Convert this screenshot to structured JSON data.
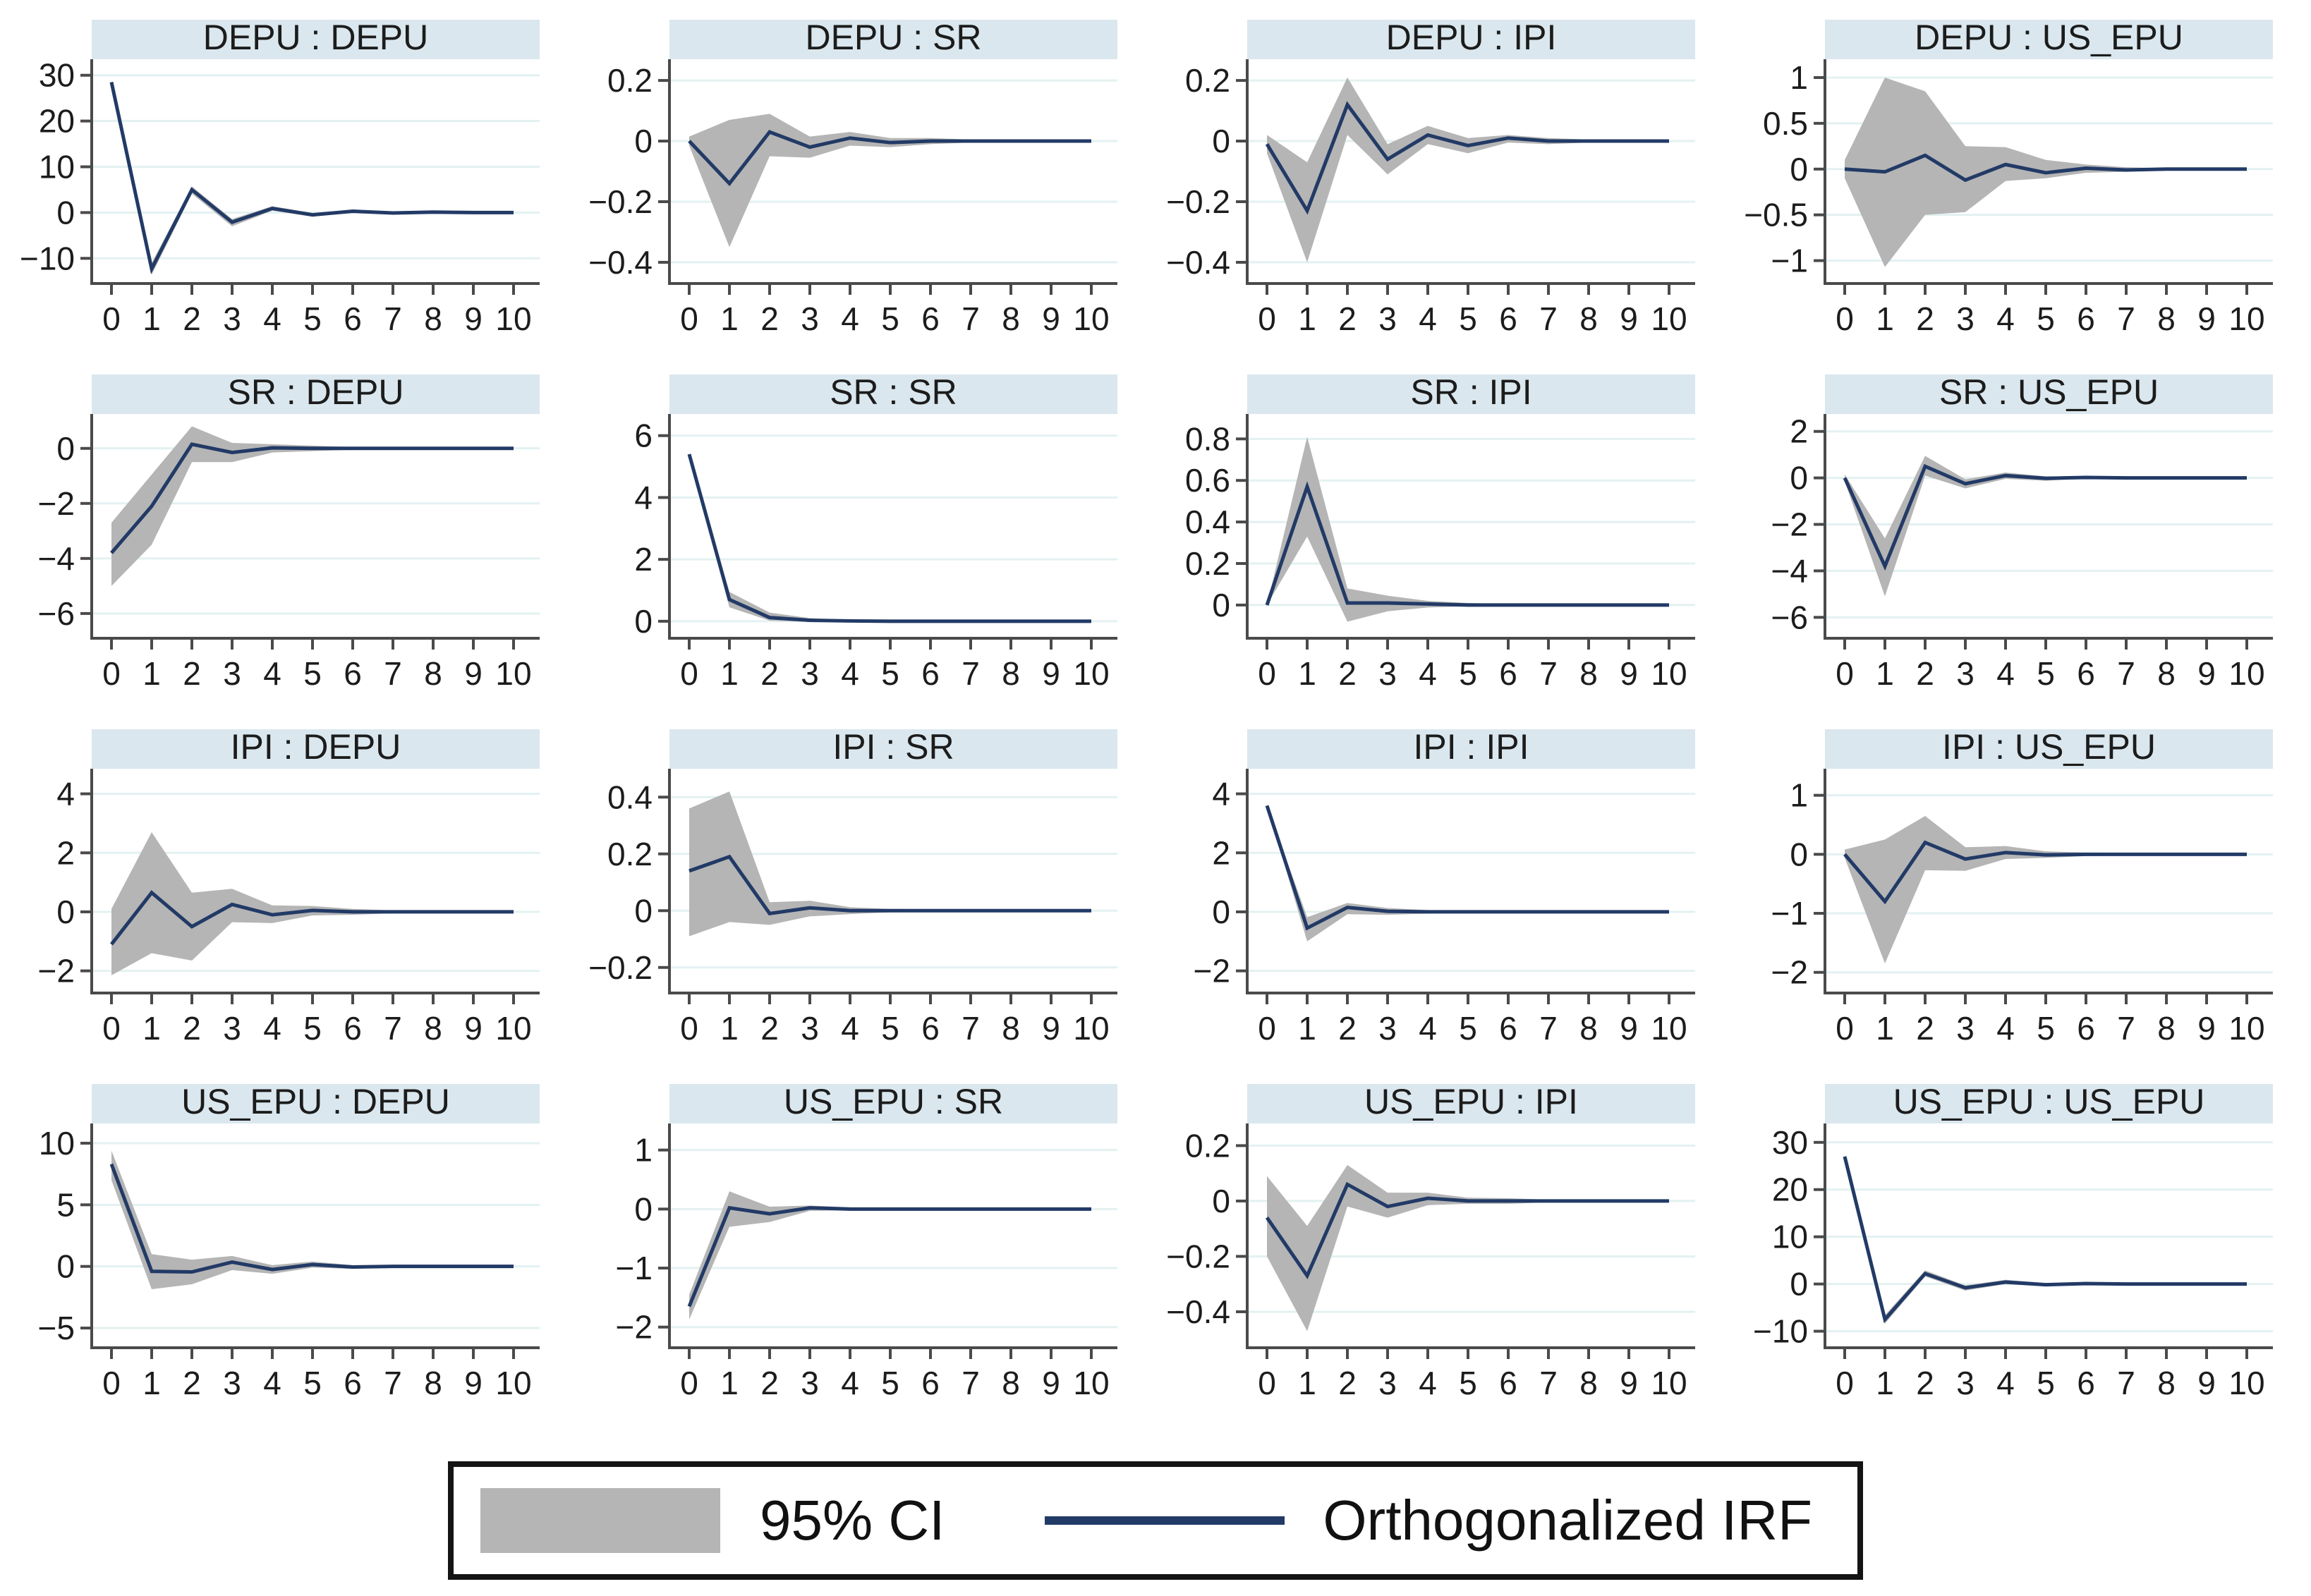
{
  "legend": {
    "ci_label": "95% CI",
    "irf_label": "Orthogonalized IRF"
  },
  "colors": {
    "header_bg": "#dae7ee",
    "grid_line": "#e3f1f1",
    "axis": "#4a4a4a",
    "tick_label": "#1c1c1c",
    "irf_line": "#223a66",
    "ci_fill": "#b5b5b5",
    "legend_border": "#141414"
  },
  "chart_data": [
    {
      "type": "line",
      "title": "DEPU : DEPU",
      "x": [
        0,
        1,
        2,
        3,
        4,
        5,
        6,
        7,
        8,
        9,
        10
      ],
      "xticks": [
        0,
        1,
        2,
        3,
        4,
        5,
        6,
        7,
        8,
        9,
        10
      ],
      "yticks": [
        -10,
        0,
        10,
        20,
        30
      ],
      "ylim": [
        -15.5,
        33.5
      ],
      "irf": [
        28.5,
        -12.3,
        5.0,
        -2.1,
        0.9,
        -0.5,
        0.3,
        -0.1,
        0.1,
        0,
        0
      ],
      "ci_lower": [
        28.5,
        -13.6,
        4.1,
        -3.0,
        0.4,
        -0.9,
        0.0,
        -0.3,
        -0.1,
        -0.1,
        -0.1
      ],
      "ci_upper": [
        28.5,
        -11.0,
        5.7,
        -1.4,
        1.4,
        -0.1,
        0.6,
        0.1,
        0.3,
        0.1,
        0.1
      ]
    },
    {
      "type": "line",
      "title": "DEPU : SR",
      "x": [
        0,
        1,
        2,
        3,
        4,
        5,
        6,
        7,
        8,
        9,
        10
      ],
      "xticks": [
        0,
        1,
        2,
        3,
        4,
        5,
        6,
        7,
        8,
        9,
        10
      ],
      "yticks": [
        -0.4,
        -0.2,
        0,
        0.2
      ],
      "ylim": [
        -0.47,
        0.27
      ],
      "irf": [
        0,
        -0.14,
        0.03,
        -0.02,
        0.01,
        -0.005,
        0,
        0,
        0,
        0,
        0
      ],
      "ci_lower": [
        -0.015,
        -0.35,
        -0.05,
        -0.055,
        -0.015,
        -0.02,
        -0.01,
        -0.005,
        -0.005,
        -0.005,
        -0.005
      ],
      "ci_upper": [
        0.015,
        0.07,
        0.09,
        0.015,
        0.03,
        0.01,
        0.01,
        0.005,
        0.005,
        0.005,
        0.005
      ]
    },
    {
      "type": "line",
      "title": "DEPU : IPI",
      "x": [
        0,
        1,
        2,
        3,
        4,
        5,
        6,
        7,
        8,
        9,
        10
      ],
      "xticks": [
        0,
        1,
        2,
        3,
        4,
        5,
        6,
        7,
        8,
        9,
        10
      ],
      "yticks": [
        -0.4,
        -0.2,
        0,
        0.2
      ],
      "ylim": [
        -0.47,
        0.27
      ],
      "irf": [
        -0.01,
        -0.23,
        0.12,
        -0.06,
        0.02,
        -0.015,
        0.01,
        0,
        0,
        0,
        0
      ],
      "ci_lower": [
        -0.04,
        -0.4,
        0.02,
        -0.11,
        -0.01,
        -0.04,
        -0.005,
        -0.01,
        -0.005,
        -0.005,
        -0.005
      ],
      "ci_upper": [
        0.02,
        -0.07,
        0.21,
        -0.01,
        0.05,
        0.01,
        0.02,
        0.01,
        0.005,
        0.005,
        0.005
      ]
    },
    {
      "type": "line",
      "title": "DEPU : US_EPU",
      "x": [
        0,
        1,
        2,
        3,
        4,
        5,
        6,
        7,
        8,
        9,
        10
      ],
      "xticks": [
        0,
        1,
        2,
        3,
        4,
        5,
        6,
        7,
        8,
        9,
        10
      ],
      "yticks": [
        -1,
        -0.5,
        0,
        0.5,
        1
      ],
      "ylim": [
        -1.25,
        1.2
      ],
      "irf": [
        0,
        -0.03,
        0.15,
        -0.12,
        0.05,
        -0.04,
        0.01,
        -0.01,
        0,
        0,
        0
      ],
      "ci_lower": [
        -0.1,
        -1.07,
        -0.5,
        -0.47,
        -0.13,
        -0.1,
        -0.04,
        -0.03,
        -0.01,
        -0.01,
        -0.01
      ],
      "ci_upper": [
        0.1,
        1.0,
        0.85,
        0.25,
        0.24,
        0.1,
        0.05,
        0.02,
        0.01,
        0.01,
        0.01
      ]
    },
    {
      "type": "line",
      "title": "SR : DEPU",
      "x": [
        0,
        1,
        2,
        3,
        4,
        5,
        6,
        7,
        8,
        9,
        10
      ],
      "xticks": [
        0,
        1,
        2,
        3,
        4,
        5,
        6,
        7,
        8,
        9,
        10
      ],
      "yticks": [
        -6,
        -4,
        -2,
        0
      ],
      "ylim": [
        -6.9,
        1.25
      ],
      "irf": [
        -3.8,
        -2.1,
        0.15,
        -0.15,
        0.02,
        0,
        0,
        0,
        0,
        0,
        0
      ],
      "ci_lower": [
        -5.0,
        -3.5,
        -0.5,
        -0.5,
        -0.15,
        -0.1,
        -0.05,
        -0.05,
        -0.05,
        -0.05,
        -0.05
      ],
      "ci_upper": [
        -2.7,
        -0.95,
        0.8,
        0.2,
        0.15,
        0.1,
        0.05,
        0.05,
        0.05,
        0.05,
        0.05
      ]
    },
    {
      "type": "line",
      "title": "SR : SR",
      "x": [
        0,
        1,
        2,
        3,
        4,
        5,
        6,
        7,
        8,
        9,
        10
      ],
      "xticks": [
        0,
        1,
        2,
        3,
        4,
        5,
        6,
        7,
        8,
        9,
        10
      ],
      "yticks": [
        0,
        2,
        4,
        6
      ],
      "ylim": [
        -0.55,
        6.7
      ],
      "irf": [
        5.4,
        0.7,
        0.12,
        0.03,
        0.01,
        0,
        0,
        0,
        0,
        0,
        0
      ],
      "ci_lower": [
        5.4,
        0.45,
        0.02,
        -0.02,
        -0.01,
        -0.01,
        -0.01,
        -0.01,
        -0.01,
        -0.01,
        -0.01
      ],
      "ci_upper": [
        5.4,
        0.95,
        0.28,
        0.1,
        0.03,
        0.01,
        0.01,
        0.01,
        0.01,
        0.01,
        0.01
      ]
    },
    {
      "type": "line",
      "title": "SR : IPI",
      "x": [
        0,
        1,
        2,
        3,
        4,
        5,
        6,
        7,
        8,
        9,
        10
      ],
      "xticks": [
        0,
        1,
        2,
        3,
        4,
        5,
        6,
        7,
        8,
        9,
        10
      ],
      "yticks": [
        0,
        0.2,
        0.4,
        0.6,
        0.8
      ],
      "ylim": [
        -0.16,
        0.92
      ],
      "irf": [
        0,
        0.57,
        0.01,
        0.01,
        0.005,
        0,
        0,
        0,
        0,
        0,
        0
      ],
      "ci_lower": [
        0,
        0.33,
        -0.08,
        -0.03,
        -0.012,
        -0.006,
        -0.005,
        -0.005,
        -0.005,
        -0.005,
        -0.005
      ],
      "ci_upper": [
        0,
        0.81,
        0.08,
        0.045,
        0.02,
        0.01,
        0.005,
        0.005,
        0.005,
        0.005,
        0.005
      ]
    },
    {
      "type": "line",
      "title": "SR : US_EPU",
      "x": [
        0,
        1,
        2,
        3,
        4,
        5,
        6,
        7,
        8,
        9,
        10
      ],
      "xticks": [
        0,
        1,
        2,
        3,
        4,
        5,
        6,
        7,
        8,
        9,
        10
      ],
      "yticks": [
        -6,
        -4,
        -2,
        0,
        2
      ],
      "ylim": [
        -6.9,
        2.75
      ],
      "irf": [
        0,
        -3.8,
        0.5,
        -0.25,
        0.1,
        -0.02,
        0.02,
        0,
        0,
        0,
        0
      ],
      "ci_lower": [
        -0.15,
        -5.1,
        0.1,
        -0.45,
        -0.04,
        -0.12,
        -0.03,
        -0.03,
        -0.02,
        -0.02,
        -0.02
      ],
      "ci_upper": [
        0.15,
        -2.6,
        0.95,
        -0.06,
        0.23,
        0.07,
        0.06,
        0.03,
        0.02,
        0.02,
        0.02
      ]
    },
    {
      "type": "line",
      "title": "IPI : DEPU",
      "x": [
        0,
        1,
        2,
        3,
        4,
        5,
        6,
        7,
        8,
        9,
        10
      ],
      "xticks": [
        0,
        1,
        2,
        3,
        4,
        5,
        6,
        7,
        8,
        9,
        10
      ],
      "yticks": [
        -2,
        0,
        2,
        4
      ],
      "ylim": [
        -2.75,
        4.85
      ],
      "irf": [
        -1.1,
        0.65,
        -0.5,
        0.25,
        -0.1,
        0.05,
        0,
        0,
        0,
        0,
        0
      ],
      "ci_lower": [
        -2.15,
        -1.4,
        -1.65,
        -0.35,
        -0.38,
        -0.12,
        -0.1,
        -0.05,
        -0.05,
        -0.05,
        -0.05
      ],
      "ci_upper": [
        0.1,
        2.7,
        0.65,
        0.78,
        0.22,
        0.2,
        0.1,
        0.05,
        0.05,
        0.05,
        0.05
      ]
    },
    {
      "type": "line",
      "title": "IPI : SR",
      "x": [
        0,
        1,
        2,
        3,
        4,
        5,
        6,
        7,
        8,
        9,
        10
      ],
      "xticks": [
        0,
        1,
        2,
        3,
        4,
        5,
        6,
        7,
        8,
        9,
        10
      ],
      "yticks": [
        -0.2,
        0,
        0.2,
        0.4
      ],
      "ylim": [
        -0.29,
        0.5
      ],
      "irf": [
        0.14,
        0.19,
        -0.01,
        0.01,
        0,
        0,
        0,
        0,
        0,
        0,
        0
      ],
      "ci_lower": [
        -0.09,
        -0.04,
        -0.05,
        -0.02,
        -0.012,
        -0.006,
        -0.005,
        -0.005,
        -0.005,
        -0.005,
        -0.005
      ],
      "ci_upper": [
        0.36,
        0.42,
        0.03,
        0.035,
        0.012,
        0.006,
        0.005,
        0.005,
        0.005,
        0.005,
        0.005
      ]
    },
    {
      "type": "line",
      "title": "IPI : IPI",
      "x": [
        0,
        1,
        2,
        3,
        4,
        5,
        6,
        7,
        8,
        9,
        10
      ],
      "xticks": [
        0,
        1,
        2,
        3,
        4,
        5,
        6,
        7,
        8,
        9,
        10
      ],
      "yticks": [
        -2,
        0,
        2,
        4
      ],
      "ylim": [
        -2.75,
        4.85
      ],
      "irf": [
        3.6,
        -0.55,
        0.15,
        0.02,
        0,
        0,
        0,
        0,
        0,
        0,
        0
      ],
      "ci_lower": [
        3.6,
        -1.0,
        -0.08,
        -0.1,
        -0.06,
        -0.03,
        -0.02,
        -0.02,
        -0.02,
        -0.02,
        -0.02
      ],
      "ci_upper": [
        3.6,
        -0.18,
        0.3,
        0.13,
        0.06,
        0.03,
        0.02,
        0.02,
        0.02,
        0.02,
        0.02
      ]
    },
    {
      "type": "line",
      "title": "IPI : US_EPU",
      "x": [
        0,
        1,
        2,
        3,
        4,
        5,
        6,
        7,
        8,
        9,
        10
      ],
      "xticks": [
        0,
        1,
        2,
        3,
        4,
        5,
        6,
        7,
        8,
        9,
        10
      ],
      "yticks": [
        -2,
        -1,
        0,
        1
      ],
      "ylim": [
        -2.35,
        1.45
      ],
      "irf": [
        0,
        -0.8,
        0.2,
        -0.08,
        0.03,
        -0.01,
        0,
        0,
        0,
        0,
        0
      ],
      "ci_lower": [
        -0.06,
        -1.85,
        -0.27,
        -0.28,
        -0.08,
        -0.06,
        -0.03,
        -0.02,
        -0.02,
        -0.02,
        -0.02
      ],
      "ci_upper": [
        0.08,
        0.25,
        0.65,
        0.12,
        0.14,
        0.05,
        0.03,
        0.02,
        0.02,
        0.02,
        0.02
      ]
    },
    {
      "type": "line",
      "title": "US_EPU : DEPU",
      "x": [
        0,
        1,
        2,
        3,
        4,
        5,
        6,
        7,
        8,
        9,
        10
      ],
      "xticks": [
        0,
        1,
        2,
        3,
        4,
        5,
        6,
        7,
        8,
        9,
        10
      ],
      "yticks": [
        -5,
        0,
        5,
        10
      ],
      "ylim": [
        -6.6,
        11.6
      ],
      "irf": [
        8.3,
        -0.4,
        -0.45,
        0.35,
        -0.25,
        0.15,
        -0.05,
        0,
        0,
        0,
        0
      ],
      "ci_lower": [
        7.0,
        -1.85,
        -1.45,
        -0.3,
        -0.6,
        -0.1,
        -0.2,
        -0.1,
        -0.1,
        -0.1,
        -0.1
      ],
      "ci_upper": [
        9.4,
        1.0,
        0.55,
        0.85,
        0.1,
        0.4,
        0.1,
        0.1,
        0.1,
        0.1,
        0.1
      ]
    },
    {
      "type": "line",
      "title": "US_EPU : SR",
      "x": [
        0,
        1,
        2,
        3,
        4,
        5,
        6,
        7,
        8,
        9,
        10
      ],
      "xticks": [
        0,
        1,
        2,
        3,
        4,
        5,
        6,
        7,
        8,
        9,
        10
      ],
      "yticks": [
        -2,
        -1,
        0,
        1
      ],
      "ylim": [
        -2.35,
        1.45
      ],
      "irf": [
        -1.65,
        0.02,
        -0.08,
        0.02,
        0,
        0,
        0,
        0,
        0,
        0,
        0
      ],
      "ci_lower": [
        -1.87,
        -0.3,
        -0.22,
        -0.03,
        -0.02,
        -0.01,
        -0.01,
        -0.01,
        -0.01,
        -0.01,
        -0.01
      ],
      "ci_upper": [
        -1.45,
        0.3,
        0.04,
        0.06,
        0.03,
        0.01,
        0.01,
        0.01,
        0.01,
        0.01,
        0.01
      ]
    },
    {
      "type": "line",
      "title": "US_EPU : IPI",
      "x": [
        0,
        1,
        2,
        3,
        4,
        5,
        6,
        7,
        8,
        9,
        10
      ],
      "xticks": [
        0,
        1,
        2,
        3,
        4,
        5,
        6,
        7,
        8,
        9,
        10
      ],
      "yticks": [
        -0.4,
        -0.2,
        0,
        0.2
      ],
      "ylim": [
        -0.53,
        0.28
      ],
      "irf": [
        -0.06,
        -0.27,
        0.06,
        -0.02,
        0.01,
        0,
        0,
        0,
        0,
        0,
        0
      ],
      "ci_lower": [
        -0.2,
        -0.47,
        -0.02,
        -0.06,
        -0.015,
        -0.01,
        -0.01,
        -0.005,
        -0.005,
        -0.005,
        -0.005
      ],
      "ci_upper": [
        0.09,
        -0.09,
        0.13,
        0.03,
        0.03,
        0.012,
        0.01,
        0.005,
        0.005,
        0.005,
        0.005
      ]
    },
    {
      "type": "line",
      "title": "US_EPU : US_EPU",
      "x": [
        0,
        1,
        2,
        3,
        4,
        5,
        6,
        7,
        8,
        9,
        10
      ],
      "xticks": [
        0,
        1,
        2,
        3,
        4,
        5,
        6,
        7,
        8,
        9,
        10
      ],
      "yticks": [
        -10,
        0,
        10,
        20,
        30
      ],
      "ylim": [
        -13.5,
        34
      ],
      "irf": [
        27,
        -7.5,
        2.2,
        -0.8,
        0.4,
        -0.15,
        0.1,
        0,
        0,
        0,
        0
      ],
      "ci_lower": [
        27,
        -8.4,
        1.6,
        -1.4,
        0.0,
        -0.5,
        -0.15,
        -0.2,
        -0.1,
        -0.1,
        -0.1
      ],
      "ci_upper": [
        27,
        -6.6,
        2.9,
        -0.3,
        0.9,
        0.2,
        0.35,
        0.2,
        0.1,
        0.1,
        0.1
      ]
    }
  ]
}
